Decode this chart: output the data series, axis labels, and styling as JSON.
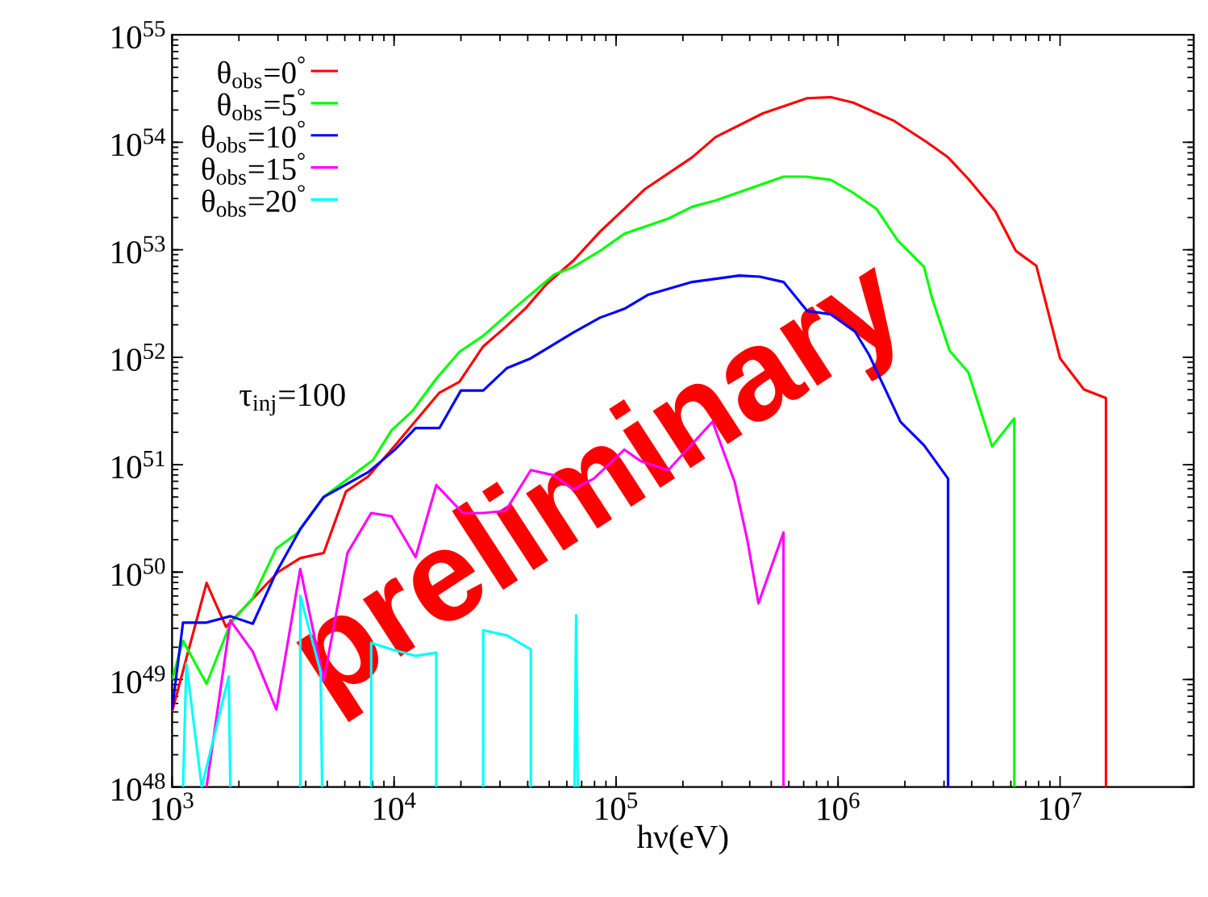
{
  "chart_data": {
    "type": "line",
    "log": "xy",
    "xlabel": "hν(eV)",
    "xlim": [
      1000,
      40000000
    ],
    "ylim": [
      1e+48,
      1e+55
    ],
    "xticks": [
      {
        "value": 1000,
        "label": "10$^{3}$"
      },
      {
        "value": 10000,
        "label": "10$^{4}$"
      },
      {
        "value": 100000,
        "label": "10$^{5}$"
      },
      {
        "value": 1000000,
        "label": "10$^{6}$"
      },
      {
        "value": 10000000,
        "label": "10$^{7}$"
      }
    ],
    "yticks": [
      {
        "value": 1e+48,
        "label": "10$^{48}$"
      },
      {
        "value": 1e+49,
        "label": "10$^{49}$"
      },
      {
        "value": 1e+50,
        "label": "10$^{50}$"
      },
      {
        "value": 1e+51,
        "label": "10$^{51}$"
      },
      {
        "value": 1e+52,
        "label": "10$^{52}$"
      },
      {
        "value": 1e+53,
        "label": "10$^{53}$"
      },
      {
        "value": 1e+54,
        "label": "10$^{54}$"
      },
      {
        "value": 1e+55,
        "label": "10$^{55}$"
      }
    ],
    "legend": "top left",
    "marker": "none",
    "line_style": "solid",
    "annotations": [
      "τ$_{inj}$=100",
      "preliminary"
    ],
    "series": [
      {
        "name": "θ$_{obs}$=0$^{°}$",
        "color": "#ff0000",
        "x": [
          1000,
          1430,
          1750,
          3000,
          3780,
          4820,
          6070,
          7640,
          10100,
          16000,
          19700,
          25200,
          31800,
          39300,
          48600,
          64300,
          84900,
          110000,
          134000,
          220000,
          281000,
          459000,
          726000,
          929000,
          1170000,
          1790000,
          2480000,
          3130000,
          3860000,
          5100000,
          6320000,
          7820000,
          10000000,
          12800000,
          16100000,
          16100000
        ],
        "values": [
          5.01e+48,
          7.94e+49,
          3.09e+49,
          1e+50,
          1.35e+50,
          1.51e+50,
          5.62e+50,
          7.76e+50,
          1.51e+51,
          4.68e+51,
          5.89e+51,
          1.26e+52,
          1.91e+52,
          2.88e+52,
          4.79e+52,
          7.94e+52,
          1.48e+53,
          2.45e+53,
          3.63e+53,
          7.24e+53,
          1.12e+54,
          1.86e+54,
          2.57e+54,
          2.63e+54,
          2.34e+54,
          1.58e+54,
          1.02e+54,
          7.24e+53,
          4.57e+53,
          2.29e+53,
          9.77e+52,
          7.08e+52,
          9.77e+51,
          5.01e+51,
          4.17e+51,
          1e+48
        ]
      },
      {
        "name": "θ$_{obs}$=5$^{°}$",
        "color": "#00ff00",
        "x": [
          1000,
          1120,
          1430,
          1830,
          2310,
          2950,
          3650,
          4820,
          8020,
          9750,
          12100,
          15500,
          19700,
          25200,
          35000,
          52700,
          64300,
          84900,
          109000,
          172000,
          220000,
          281000,
          568000,
          714000,
          929000,
          1170000,
          1490000,
          1850000,
          2440000,
          2650000,
          3180000,
          3860000,
          4940000,
          6220000,
          6220000
        ],
        "values": [
          1e+49,
          2.29e+49,
          9.12e+48,
          3.31e+49,
          5.75e+49,
          1.66e+50,
          2.29e+50,
          5.01e+50,
          1.1e+51,
          2.09e+51,
          3.16e+51,
          6.31e+51,
          1.12e+52,
          1.58e+52,
          2.88e+52,
          5.89e+52,
          6.92e+52,
          9.77e+52,
          1.41e+53,
          1.95e+53,
          2.51e+53,
          2.88e+53,
          4.79e+53,
          4.79e+53,
          4.47e+53,
          3.39e+53,
          2.4e+53,
          1.23e+53,
          6.92e+52,
          3.55e+52,
          1.15e+52,
          7.24e+51,
          1.48e+51,
          2.69e+51,
          1e+48
        ]
      },
      {
        "name": "θ$_{obs}$=10$^{°}$",
        "color": "#0000ff",
        "x": [
          1000,
          1120,
          1430,
          1830,
          2310,
          2950,
          3780,
          4820,
          7640,
          10100,
          12500,
          16000,
          20000,
          25200,
          32300,
          41300,
          64300,
          84900,
          109000,
          139000,
          220000,
          359000,
          444000,
          568000,
          726000,
          929000,
          1190000,
          1380000,
          1910000,
          2440000,
          3130000,
          3130000
        ],
        "values": [
          5.25e+48,
          3.39e+49,
          3.39e+49,
          3.89e+49,
          3.31e+49,
          1e+50,
          2.51e+50,
          5.01e+50,
          8.51e+50,
          1.38e+51,
          2.19e+51,
          2.19e+51,
          4.9e+51,
          4.9e+51,
          7.94e+51,
          9.77e+51,
          1.7e+52,
          2.34e+52,
          2.82e+52,
          3.8e+52,
          5.01e+52,
          5.75e+52,
          5.62e+52,
          5.01e+52,
          2.69e+52,
          2.51e+52,
          1.74e+52,
          1.05e+52,
          2.51e+51,
          1.51e+51,
          7.41e+50,
          1e+48
        ]
      },
      {
        "name": "θ$_{obs}$=15$^{°}$",
        "color": "#ff00ff",
        "x": [
          1430,
          1830,
          2310,
          2950,
          3780,
          4820,
          6170,
          7890,
          9750,
          12500,
          15500,
          20400,
          25200,
          31800,
          41300,
          52700,
          64300,
          79400,
          109000,
          130000,
          172000,
          272000,
          342000,
          390000,
          438000,
          568000,
          568000
        ],
        "values": [
          1e+48,
          3.55e+49,
          1.82e+49,
          5.25e+48,
          1.07e+50,
          9.77e+48,
          1.51e+50,
          3.55e+50,
          3.31e+50,
          1.38e+50,
          6.46e+50,
          3.55e+50,
          3.55e+50,
          3.72e+50,
          8.91e+50,
          7.94e+50,
          5.89e+50,
          7.41e+50,
          1.38e+51,
          1.07e+51,
          8.91e+50,
          2.51e+51,
          6.92e+50,
          2e+50,
          5.13e+49,
          2.34e+50,
          1e+48
        ]
      },
      {
        "name": "θ$_{obs}$=20$^{°}$",
        "color": "#00ffff",
        "x": [
          1120,
          1160,
          1360,
          1800,
          1830,
          null,
          3780,
          3780,
          4670,
          4740,
          null,
          7890,
          7890,
          9750,
          12500,
          15500,
          15500,
          null,
          25200,
          25200,
          32300,
          41300,
          41300,
          null,
          65000,
          66100,
          67200
        ],
        "values": [
          1e+48,
          1.41e+49,
          1e+48,
          1.07e+49,
          1e+48,
          null,
          1e+48,
          6.03e+49,
          1.17e+49,
          1e+48,
          null,
          1e+48,
          2.19e+49,
          1.91e+49,
          1.66e+49,
          1.78e+49,
          1e+48,
          null,
          1e+48,
          2.88e+49,
          2.57e+49,
          1.91e+49,
          1e+48,
          null,
          1e+48,
          3.98e+49,
          1e+48
        ]
      }
    ]
  }
}
